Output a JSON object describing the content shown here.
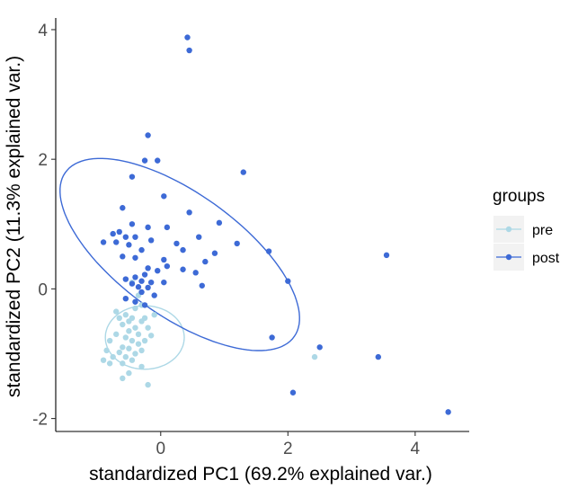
{
  "chart_data": {
    "type": "scatter",
    "xlabel": "standardized PC1 (69.2% explained var.)",
    "ylabel": "standardized PC2 (11.3% explained var.)",
    "xlim": [
      -1.65,
      4.85
    ],
    "ylim": [
      -2.2,
      4.18
    ],
    "x_ticks": [
      0,
      2,
      4
    ],
    "y_ticks": [
      -2,
      0,
      2,
      4
    ],
    "grid": false,
    "legend": {
      "title": "groups",
      "position": "right"
    },
    "series": [
      {
        "name": "pre",
        "color": "#add8e6",
        "ellipse": {
          "center": [
            -0.25,
            -0.75
          ],
          "semi_axes": [
            0.62,
            0.49
          ],
          "angle_deg": 0
        },
        "points": [
          [
            -0.55,
            -0.4
          ],
          [
            -0.45,
            -0.45
          ],
          [
            -0.3,
            -0.5
          ],
          [
            -0.6,
            -0.55
          ],
          [
            -0.4,
            -0.6
          ],
          [
            -0.2,
            -0.6
          ],
          [
            -0.5,
            -0.65
          ],
          [
            -0.35,
            -0.7
          ],
          [
            -0.7,
            -0.7
          ],
          [
            -0.15,
            -0.72
          ],
          [
            -0.55,
            -0.75
          ],
          [
            -0.45,
            -0.8
          ],
          [
            -0.25,
            -0.8
          ],
          [
            -0.8,
            -0.8
          ],
          [
            -0.35,
            -0.85
          ],
          [
            -0.6,
            -0.9
          ],
          [
            -0.5,
            -0.92
          ],
          [
            -0.85,
            -0.95
          ],
          [
            -0.3,
            -0.95
          ],
          [
            -0.65,
            -0.98
          ],
          [
            -0.4,
            -1.0
          ],
          [
            -0.55,
            -1.05
          ],
          [
            -0.75,
            -1.05
          ],
          [
            -0.9,
            -1.1
          ],
          [
            -0.45,
            -1.1
          ],
          [
            -0.6,
            -1.15
          ],
          [
            -0.3,
            -1.2
          ],
          [
            -0.8,
            -1.15
          ],
          [
            -0.5,
            -0.5
          ],
          [
            -0.65,
            -0.45
          ],
          [
            -0.25,
            -0.45
          ],
          [
            -0.4,
            -0.3
          ],
          [
            -0.3,
            -0.25
          ],
          [
            -0.7,
            -0.35
          ],
          [
            -0.1,
            -0.4
          ],
          [
            -0.5,
            -1.3
          ],
          [
            -0.6,
            -1.38
          ],
          [
            -0.2,
            -1.48
          ],
          [
            2.42,
            -1.05
          ],
          [
            -0.35,
            -0.1
          ],
          [
            -0.45,
            0.1
          ]
        ]
      },
      {
        "name": "post",
        "color": "#3d6ad6",
        "ellipse": {
          "center": [
            0.3,
            0.53
          ],
          "semi_axes": [
            2.2,
            0.95
          ],
          "angle_deg": -35
        },
        "points": [
          [
            0.42,
            3.88
          ],
          [
            0.45,
            3.68
          ],
          [
            -0.2,
            2.37
          ],
          [
            -0.25,
            1.98
          ],
          [
            -0.05,
            1.98
          ],
          [
            1.3,
            1.8
          ],
          [
            -0.45,
            1.73
          ],
          [
            0.05,
            1.43
          ],
          [
            -0.6,
            1.25
          ],
          [
            0.45,
            1.18
          ],
          [
            0.92,
            1.02
          ],
          [
            -0.45,
            1.0
          ],
          [
            -0.2,
            0.95
          ],
          [
            0.1,
            0.95
          ],
          [
            -0.65,
            0.88
          ],
          [
            -0.75,
            0.85
          ],
          [
            -0.55,
            0.8
          ],
          [
            -0.4,
            0.8
          ],
          [
            0.6,
            0.8
          ],
          [
            -0.15,
            0.75
          ],
          [
            -0.7,
            0.72
          ],
          [
            -0.9,
            0.72
          ],
          [
            0.25,
            0.7
          ],
          [
            -0.5,
            0.68
          ],
          [
            1.2,
            0.7
          ],
          [
            0.35,
            0.6
          ],
          [
            -0.3,
            0.6
          ],
          [
            0.85,
            0.55
          ],
          [
            3.55,
            0.52
          ],
          [
            -0.6,
            0.5
          ],
          [
            -0.4,
            0.48
          ],
          [
            0.05,
            0.45
          ],
          [
            0.7,
            0.42
          ],
          [
            1.7,
            0.58
          ],
          [
            0.1,
            0.35
          ],
          [
            -0.2,
            0.32
          ],
          [
            0.35,
            0.3
          ],
          [
            -0.05,
            0.28
          ],
          [
            0.55,
            0.25
          ],
          [
            -0.25,
            0.22
          ],
          [
            -0.4,
            0.18
          ],
          [
            -0.55,
            0.15
          ],
          [
            -0.3,
            0.12
          ],
          [
            -0.15,
            0.1
          ],
          [
            0.05,
            0.1
          ],
          [
            -0.45,
            0.08
          ],
          [
            -0.35,
            0.03
          ],
          [
            -0.2,
            0.02
          ],
          [
            -0.3,
            -0.05
          ],
          [
            -0.1,
            -0.1
          ],
          [
            0.65,
            0.05
          ],
          [
            2.0,
            0.12
          ],
          [
            -0.55,
            -0.15
          ],
          [
            -0.4,
            -0.2
          ],
          [
            -0.25,
            -0.25
          ],
          [
            1.75,
            -0.75
          ],
          [
            2.5,
            -0.9
          ],
          [
            3.42,
            -1.05
          ],
          [
            2.08,
            -1.6
          ],
          [
            4.52,
            -1.9
          ]
        ]
      }
    ]
  }
}
